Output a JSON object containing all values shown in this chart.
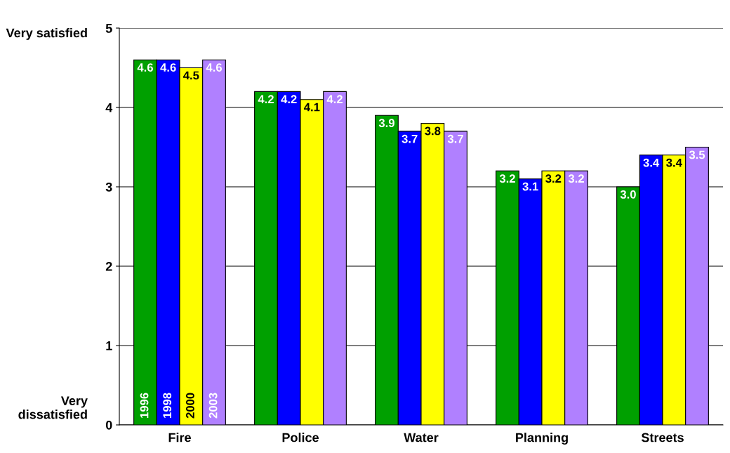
{
  "chart_data": {
    "type": "bar",
    "categories": [
      "Fire",
      "Police",
      "Water",
      "Planning",
      "Streets"
    ],
    "series": [
      {
        "name": "1996",
        "color": "#00a000",
        "values": [
          4.6,
          4.2,
          3.9,
          3.2,
          3.0
        ],
        "value_labels": [
          "4.6",
          "4.2",
          "3.9",
          "3.2",
          "3.0"
        ]
      },
      {
        "name": "1998",
        "color": "#0000ff",
        "values": [
          4.6,
          4.2,
          3.7,
          3.1,
          3.4
        ],
        "value_labels": [
          "4.6",
          "4.2",
          "3.7",
          "3.1",
          "3.4"
        ]
      },
      {
        "name": "2000",
        "color": "#ffff00",
        "values": [
          4.5,
          4.1,
          3.8,
          3.2,
          3.4
        ],
        "value_labels": [
          "4.5",
          "4.1",
          "3.8",
          "3.2",
          "3.4"
        ]
      },
      {
        "name": "2003",
        "color": "#b080ff",
        "values": [
          4.6,
          4.2,
          3.7,
          3.2,
          3.5
        ],
        "value_labels": [
          "4.6",
          "4.2",
          "3.7",
          "3.2",
          "3.5"
        ]
      }
    ],
    "ylim": [
      0,
      5
    ],
    "yticks": [
      0,
      1,
      2,
      3,
      4,
      5
    ],
    "grid": "y",
    "annotations": [
      "Very satisfied",
      "Very dissatisfied"
    ]
  }
}
